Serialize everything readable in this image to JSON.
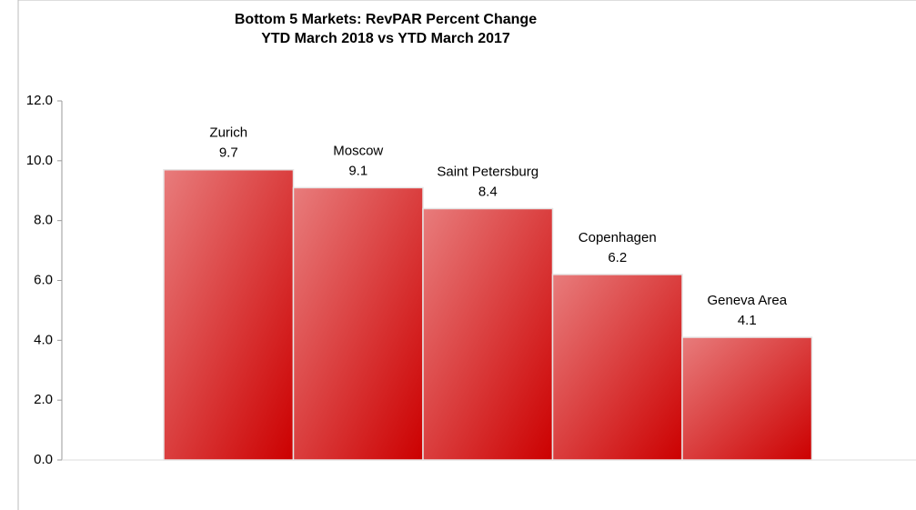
{
  "chart_data": {
    "type": "bar",
    "title": "Bottom 5 Markets: RevPAR Percent Change",
    "subtitle": "YTD March 2018 vs YTD March 2017",
    "categories": [
      "Zurich",
      "Moscow",
      "Saint Petersburg",
      "Copenhagen",
      "Geneva Area"
    ],
    "values": [
      9.7,
      9.1,
      8.4,
      6.2,
      4.1
    ],
    "color": "#cc0000",
    "ylim": [
      0,
      12
    ],
    "yticks": [
      {
        "value": 0,
        "label": "0.0"
      },
      {
        "value": 2,
        "label": "2.0"
      },
      {
        "value": 4,
        "label": "4.0"
      },
      {
        "value": 6,
        "label": "6.0"
      },
      {
        "value": 8,
        "label": "8.0"
      },
      {
        "value": 10,
        "label": "10.0"
      },
      {
        "value": 12,
        "label": "12.0"
      }
    ],
    "grid": false
  }
}
